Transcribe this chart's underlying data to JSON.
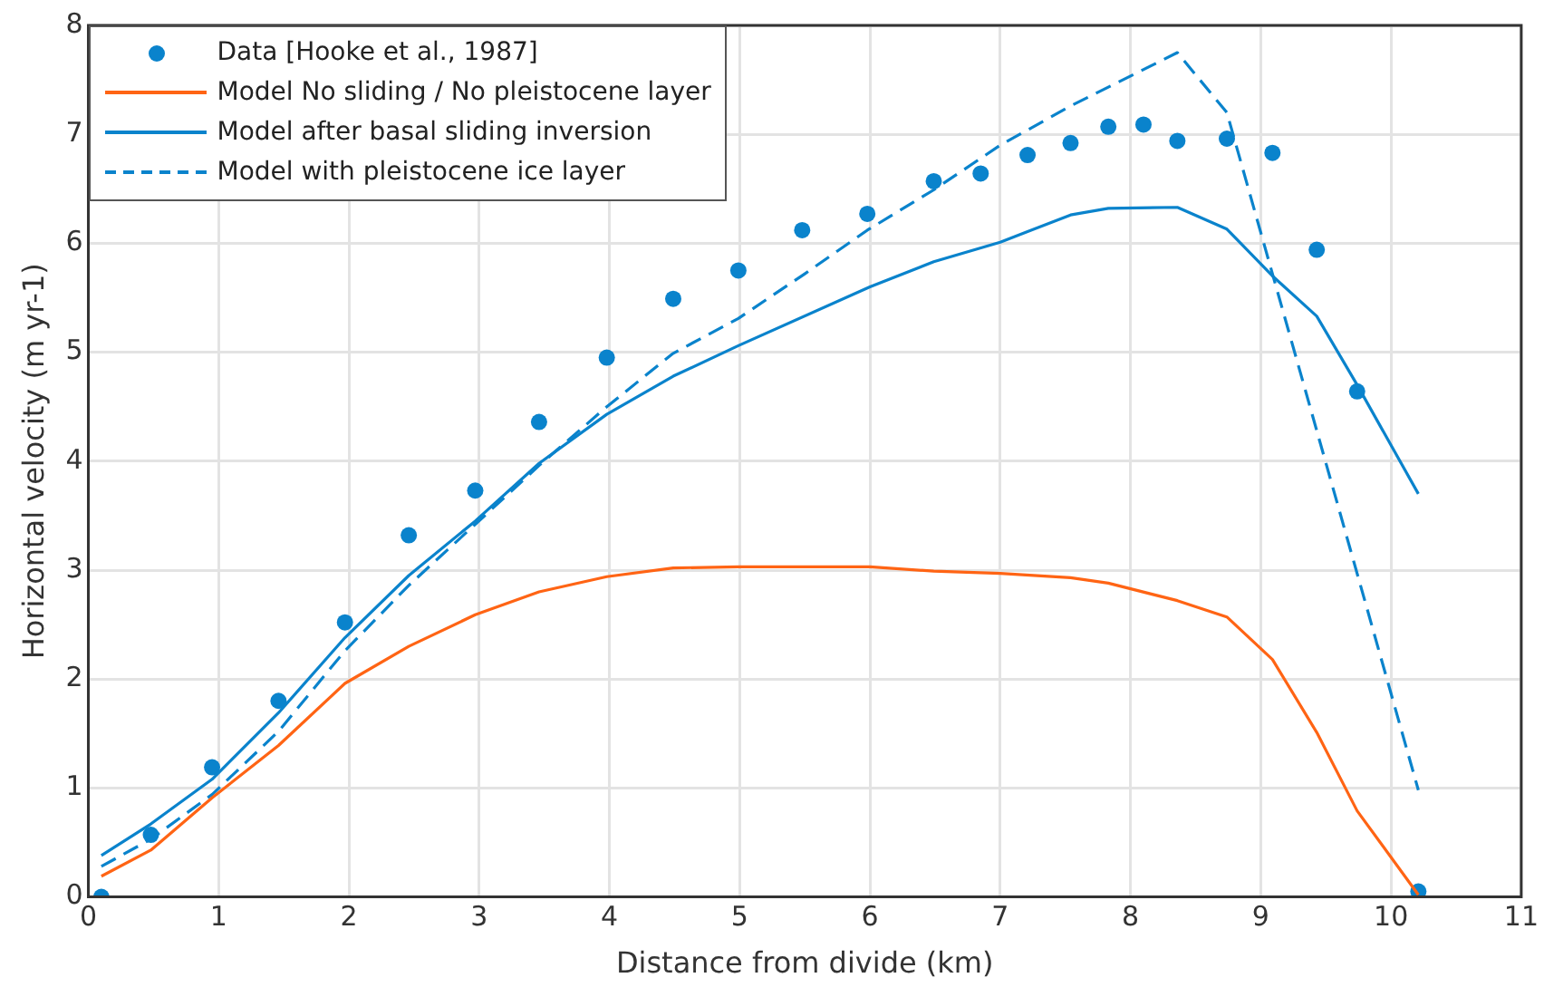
{
  "chart_data": {
    "type": "line",
    "xlabel": "Distance from divide (km)",
    "ylabel": "Horizontal velocity (m yr-1)",
    "xlim": [
      0,
      11
    ],
    "xticks": [
      0,
      1,
      2,
      3,
      4,
      5,
      6,
      7,
      8,
      9,
      10,
      11
    ],
    "ylim": [
      0,
      8
    ],
    "yticks": [
      0,
      1,
      2,
      3,
      4,
      5,
      6,
      7,
      8
    ],
    "grid": true,
    "legend": "top left",
    "series": [
      {
        "name": "Data [Hooke et al., 1987]",
        "type": "scatter",
        "marker": "circle",
        "color": "#0a83cc",
        "x": [
          0.1,
          0.48,
          0.95,
          1.46,
          1.97,
          2.46,
          2.97,
          3.46,
          3.98,
          4.49,
          4.99,
          5.48,
          5.98,
          6.49,
          6.85,
          7.21,
          7.54,
          7.83,
          8.1,
          8.36,
          8.74,
          9.09,
          9.43,
          9.74,
          10.21
        ],
        "values": [
          0,
          0.57,
          1.19,
          1.8,
          2.52,
          3.32,
          3.73,
          4.36,
          4.95,
          5.49,
          5.75,
          6.12,
          6.27,
          6.57,
          6.64,
          6.81,
          6.92,
          7.07,
          7.09,
          6.94,
          6.96,
          6.83,
          5.94,
          4.64,
          0.05
        ]
      },
      {
        "name": "Model No sliding / No pleistocene layer",
        "type": "line",
        "marker": "none",
        "line_style": "solid",
        "color": "#ff6414",
        "x": [
          0.1,
          0.48,
          0.95,
          1.46,
          1.97,
          2.46,
          2.97,
          3.46,
          3.98,
          4.49,
          4.99,
          6,
          6.49,
          7,
          7.54,
          7.83,
          8.36,
          8.74,
          9.09,
          9.43,
          9.74,
          10.21
        ],
        "values": [
          0.19,
          0.43,
          0.91,
          1.39,
          1.96,
          2.3,
          2.59,
          2.8,
          2.94,
          3.02,
          3.03,
          3.03,
          2.99,
          2.97,
          2.93,
          2.88,
          2.72,
          2.57,
          2.18,
          1.51,
          0.79,
          0.02
        ]
      },
      {
        "name": "Model after basal sliding inversion",
        "type": "line",
        "marker": "none",
        "line_style": "solid",
        "color": "#0a83cc",
        "x": [
          0.1,
          0.48,
          0.95,
          1.46,
          1.97,
          2.46,
          2.97,
          3.46,
          3.98,
          4.49,
          4.99,
          6,
          6.49,
          7,
          7.54,
          7.83,
          8.36,
          8.74,
          9.09,
          9.43,
          9.74,
          10.21
        ],
        "values": [
          0.38,
          0.67,
          1.08,
          1.69,
          2.38,
          2.95,
          3.45,
          3.98,
          4.43,
          4.78,
          5.06,
          5.6,
          5.83,
          6.01,
          6.26,
          6.32,
          6.33,
          6.13,
          5.7,
          5.33,
          4.7,
          3.7
        ]
      },
      {
        "name": "Model with pleistocene ice layer",
        "type": "line",
        "marker": "none",
        "line_style": "dashed",
        "color": "#0a83cc",
        "x": [
          0.1,
          0.48,
          0.95,
          1.46,
          1.97,
          2.46,
          2.97,
          3.46,
          3.98,
          4.49,
          4.99,
          5.5,
          5.98,
          6.49,
          7,
          7.54,
          8.36,
          8.74,
          10.21
        ],
        "values": [
          0.28,
          0.53,
          0.94,
          1.52,
          2.26,
          2.86,
          3.42,
          3.96,
          4.5,
          4.99,
          5.31,
          5.72,
          6.12,
          6.49,
          6.9,
          7.26,
          7.75,
          7.2,
          0.98
        ]
      }
    ]
  }
}
